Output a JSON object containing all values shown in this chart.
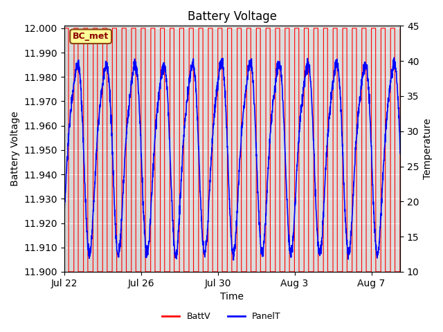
{
  "title": "Battery Voltage",
  "xlabel": "Time",
  "ylabel_left": "Battery Voltage",
  "ylabel_right": "Temperature",
  "ylim_left": [
    11.9,
    12.001
  ],
  "ylim_right": [
    10,
    45
  ],
  "bg_color": "#dcdcdc",
  "annotation_text": "BC_met",
  "annotation_bg": "#ffff99",
  "annotation_border": "#8B4513",
  "annotation_text_color": "#8B0000",
  "xtick_labels": [
    "Jul 22",
    "Jul 26",
    "Jul 30",
    "Aug 3",
    "Aug 7"
  ],
  "xtick_positions": [
    0,
    4,
    8,
    12,
    16
  ],
  "legend_items": [
    "BattV",
    "PanelT"
  ],
  "legend_colors": [
    "red",
    "blue"
  ],
  "yticks_left": [
    11.9,
    11.91,
    11.92,
    11.93,
    11.94,
    11.95,
    11.96,
    11.97,
    11.98,
    11.99,
    12.0
  ],
  "yticks_right": [
    10,
    15,
    20,
    25,
    30,
    35,
    40,
    45
  ],
  "n_days": 17.5,
  "batt_period": 0.5,
  "panel_period": 1.5,
  "gray_span_end": 4.3
}
